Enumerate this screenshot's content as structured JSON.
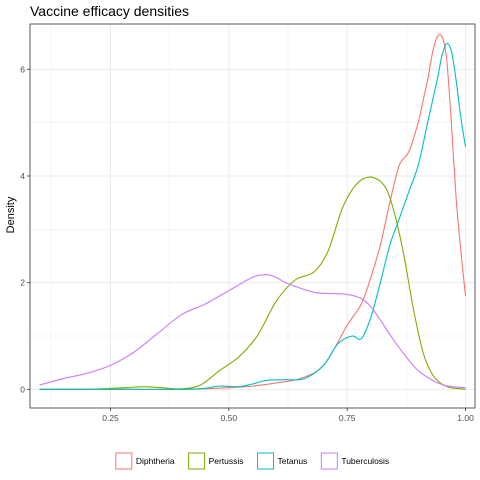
{
  "chart_data": {
    "type": "line",
    "title": "Vaccine efficacy densities",
    "xlabel": "",
    "ylabel": "Density",
    "xlim": [
      0.08,
      1.02
    ],
    "ylim": [
      -0.35,
      6.85
    ],
    "x_ticks": [
      {
        "value": 0.25,
        "label": "0.25"
      },
      {
        "value": 0.5,
        "label": "0.50"
      },
      {
        "value": 0.75,
        "label": "0.75"
      },
      {
        "value": 1.0,
        "label": "1.00"
      }
    ],
    "y_ticks": [
      {
        "value": 0,
        "label": "0"
      },
      {
        "value": 2,
        "label": "2"
      },
      {
        "value": 4,
        "label": "4"
      },
      {
        "value": 6,
        "label": "6"
      }
    ],
    "grid": true,
    "legend_position": "bottom",
    "series": [
      {
        "name": "Diphtheria",
        "color": "#F8766D",
        "x": [
          0.1,
          0.2,
          0.3,
          0.4,
          0.45,
          0.5,
          0.55,
          0.6,
          0.65,
          0.7,
          0.75,
          0.78,
          0.8,
          0.82,
          0.84,
          0.86,
          0.88,
          0.9,
          0.91,
          0.92,
          0.93,
          0.94,
          0.95,
          0.96,
          0.97,
          0.98,
          0.99,
          1.0
        ],
        "values": [
          0,
          0,
          0,
          0,
          0.01,
          0.03,
          0.06,
          0.12,
          0.2,
          0.45,
          1.2,
          1.6,
          2.1,
          2.7,
          3.5,
          4.2,
          4.45,
          5.0,
          5.4,
          5.8,
          6.3,
          6.6,
          6.62,
          6.2,
          5.0,
          3.6,
          2.6,
          1.75
        ]
      },
      {
        "name": "Pertussis",
        "color": "#7CAE00",
        "x": [
          0.1,
          0.2,
          0.28,
          0.32,
          0.36,
          0.4,
          0.44,
          0.48,
          0.52,
          0.56,
          0.6,
          0.64,
          0.68,
          0.71,
          0.74,
          0.77,
          0.8,
          0.83,
          0.85,
          0.87,
          0.89,
          0.91,
          0.93,
          0.95,
          0.97,
          0.99,
          1.0
        ],
        "values": [
          0,
          0,
          0.03,
          0.05,
          0.03,
          0.01,
          0.08,
          0.35,
          0.6,
          1.0,
          1.65,
          2.05,
          2.2,
          2.6,
          3.4,
          3.85,
          3.98,
          3.8,
          3.3,
          2.5,
          1.5,
          0.7,
          0.28,
          0.1,
          0.03,
          0.01,
          0
        ]
      },
      {
        "name": "Tetanus",
        "color": "#00BFC4",
        "x": [
          0.1,
          0.2,
          0.3,
          0.4,
          0.45,
          0.48,
          0.52,
          0.55,
          0.58,
          0.62,
          0.66,
          0.7,
          0.73,
          0.76,
          0.78,
          0.8,
          0.82,
          0.84,
          0.86,
          0.88,
          0.9,
          0.92,
          0.94,
          0.95,
          0.96,
          0.97,
          0.98,
          0.99,
          1.0
        ],
        "values": [
          0,
          0,
          0,
          0,
          0.02,
          0.06,
          0.05,
          0.1,
          0.17,
          0.18,
          0.2,
          0.45,
          0.85,
          1.0,
          0.95,
          1.35,
          2.0,
          2.7,
          3.2,
          3.7,
          4.2,
          5.0,
          5.8,
          6.25,
          6.48,
          6.35,
          5.8,
          5.1,
          4.55
        ]
      },
      {
        "name": "Tuberculosis",
        "color": "#C77CFF",
        "x": [
          0.1,
          0.15,
          0.2,
          0.25,
          0.3,
          0.35,
          0.4,
          0.45,
          0.5,
          0.55,
          0.58,
          0.6,
          0.62,
          0.65,
          0.68,
          0.7,
          0.75,
          0.78,
          0.8,
          0.82,
          0.85,
          0.88,
          0.9,
          0.93,
          0.95,
          0.97,
          1.0
        ],
        "values": [
          0.08,
          0.2,
          0.3,
          0.45,
          0.7,
          1.05,
          1.4,
          1.6,
          1.85,
          2.1,
          2.15,
          2.1,
          2.0,
          1.9,
          1.82,
          1.8,
          1.78,
          1.7,
          1.55,
          1.3,
          0.9,
          0.55,
          0.35,
          0.17,
          0.09,
          0.05,
          0.03
        ]
      }
    ]
  }
}
